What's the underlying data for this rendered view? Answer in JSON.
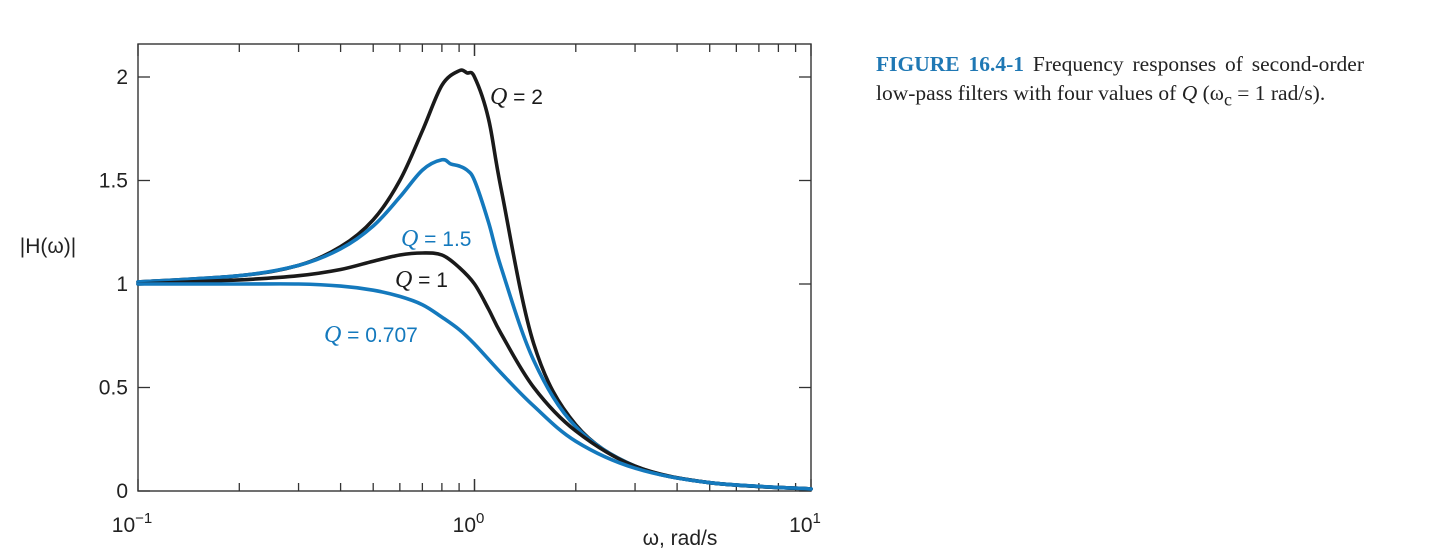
{
  "chart_data": {
    "type": "line",
    "xscale": "log",
    "xlim": [
      0.1,
      10
    ],
    "ylim": [
      0,
      2.1
    ],
    "xticks": [
      {
        "base": "10",
        "exp": "−1"
      },
      {
        "base": "10",
        "exp": "0"
      },
      {
        "base": "10",
        "exp": "1"
      }
    ],
    "yticks": [
      "0",
      "0.5",
      "1",
      "1.5",
      "2"
    ],
    "xlabel": "ω, rad/s",
    "ylabel": "|H(ω)|",
    "series": [
      {
        "name": "Q = 2",
        "q_symbol": "Q",
        "q_value": "= 2",
        "Q": 2,
        "color": "#1a1a1a",
        "x": [
          0.1,
          0.2,
          0.3,
          0.4,
          0.5,
          0.6,
          0.7,
          0.8,
          0.9,
          0.95,
          1.0,
          1.1,
          1.2,
          1.5,
          2,
          3,
          5,
          10
        ],
        "y": [
          1.01,
          1.04,
          1.09,
          1.18,
          1.31,
          1.5,
          1.74,
          1.96,
          2.03,
          2.02,
          2.0,
          1.8,
          1.46,
          0.71,
          0.32,
          0.12,
          0.04,
          0.01
        ]
      },
      {
        "name": "Q = 1.5",
        "q_symbol": "Q",
        "q_value": "= 1.5",
        "Q": 1.5,
        "color": "#1479bd",
        "x": [
          0.1,
          0.2,
          0.3,
          0.4,
          0.5,
          0.6,
          0.7,
          0.8,
          0.85,
          0.9,
          0.95,
          1.0,
          1.1,
          1.2,
          1.5,
          2,
          3,
          5,
          10
        ],
        "y": [
          1.01,
          1.04,
          1.09,
          1.17,
          1.28,
          1.42,
          1.55,
          1.6,
          1.58,
          1.57,
          1.55,
          1.5,
          1.3,
          1.08,
          0.63,
          0.31,
          0.12,
          0.04,
          0.01
        ]
      },
      {
        "name": "Q = 1",
        "q_symbol": "Q",
        "q_value": "= 1",
        "Q": 1,
        "color": "#1a1a1a",
        "x": [
          0.1,
          0.2,
          0.3,
          0.4,
          0.5,
          0.6,
          0.7,
          0.8,
          0.9,
          1.0,
          1.1,
          1.2,
          1.5,
          2,
          3,
          5,
          10
        ],
        "y": [
          1.0,
          1.02,
          1.04,
          1.07,
          1.11,
          1.14,
          1.15,
          1.14,
          1.08,
          1.0,
          0.88,
          0.76,
          0.5,
          0.29,
          0.12,
          0.04,
          0.01
        ]
      },
      {
        "name": "Q = 0.707",
        "q_symbol": "Q",
        "q_value": "= 0.707",
        "Q": 0.707,
        "color": "#1479bd",
        "x": [
          0.1,
          0.2,
          0.3,
          0.4,
          0.5,
          0.6,
          0.7,
          0.8,
          0.9,
          1.0,
          1.2,
          1.5,
          2,
          3,
          5,
          10
        ],
        "y": [
          1.0,
          1.0,
          1.0,
          0.99,
          0.97,
          0.94,
          0.9,
          0.84,
          0.78,
          0.71,
          0.57,
          0.41,
          0.24,
          0.11,
          0.04,
          0.01
        ]
      }
    ]
  },
  "caption": {
    "figure_number": "FIGURE 16.4-1",
    "text_before_q": "Frequency responses of second-order low-pass filters with four values of",
    "q_symbol": "Q",
    "text_after_q": "(ω",
    "subscript": "c",
    "text_tail": "= 1 rad/s)."
  }
}
